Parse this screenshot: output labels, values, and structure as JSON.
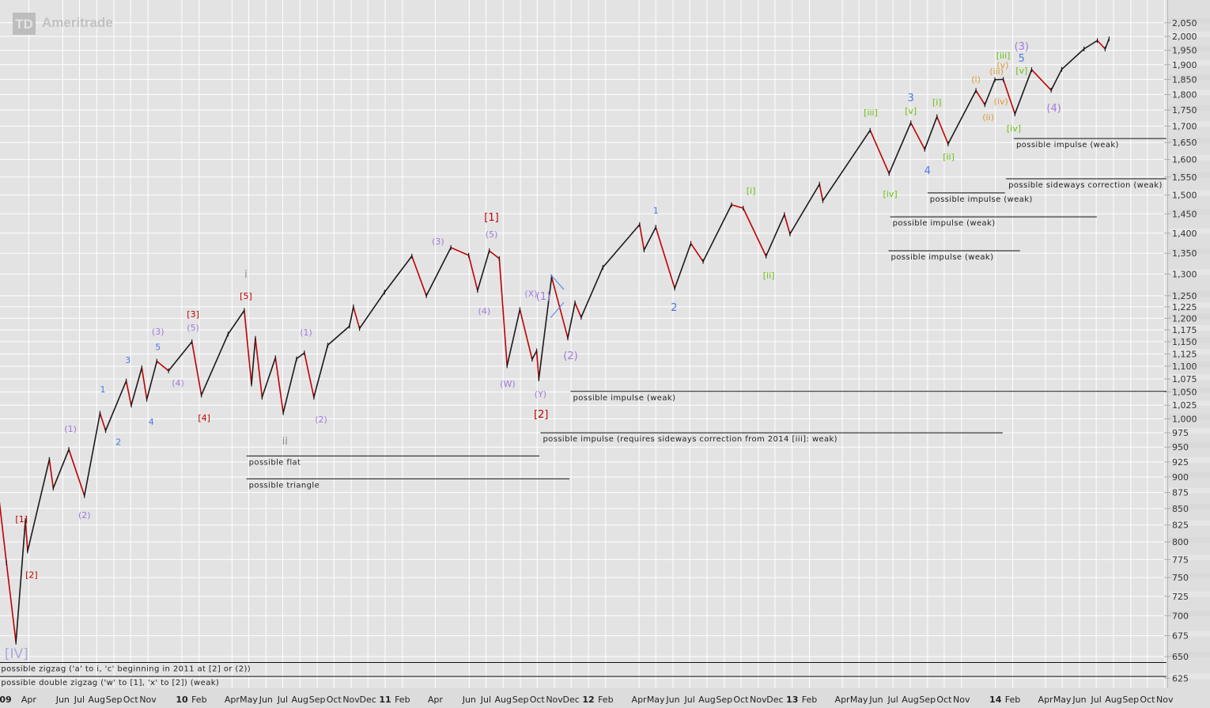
{
  "logo": {
    "text": "TD Ameritrade",
    "mark": "TD",
    "name": "Ameritrade"
  },
  "colors": {
    "background": "#e3e3e3",
    "grid": "#ffffff",
    "up_bar": "#1a1a1a",
    "down_bar": "#c00000",
    "count_line": "#111111",
    "red": "#c00000",
    "purple": "#a07ad8",
    "blue": "#4a78e8",
    "green": "#6cc010",
    "orange": "#d89a30",
    "gray": "#8a8a8a",
    "lavender": "#a8a8e0",
    "triangle": "#5b8fe8"
  },
  "chart_data": {
    "type": "line",
    "scale": "log",
    "ylim": [
      615,
      2080
    ],
    "xlim": [
      "2009-02-06",
      "2014-11-04"
    ],
    "grid": true,
    "y_ticks": [
      2050,
      2000,
      1950,
      1900,
      1850,
      1800,
      1750,
      1700,
      1650,
      1600,
      1550,
      1500,
      1450,
      1400,
      1350,
      1300,
      1250,
      1225,
      1200,
      1175,
      1150,
      1125,
      1100,
      1075,
      1050,
      1025,
      1000,
      975,
      950,
      925,
      900,
      875,
      850,
      825,
      800,
      775,
      750,
      725,
      700,
      675,
      650,
      625
    ],
    "x_ticks": [
      {
        "date": "2009-01-01",
        "label": "09",
        "bold": true
      },
      {
        "date": "2009-04-01",
        "label": "Apr"
      },
      {
        "date": "2009-06-01",
        "label": "Jun"
      },
      {
        "date": "2009-07-01",
        "label": "Jul"
      },
      {
        "date": "2009-08-01",
        "label": "Aug"
      },
      {
        "date": "2009-09-01",
        "label": "Sep"
      },
      {
        "date": "2009-10-01",
        "label": "Oct"
      },
      {
        "date": "2009-11-01",
        "label": "Nov"
      },
      {
        "date": "2010-01-01",
        "label": "10",
        "bold": true
      },
      {
        "date": "2010-02-01",
        "label": "Feb"
      },
      {
        "date": "2010-04-01",
        "label": "Apr"
      },
      {
        "date": "2010-05-01",
        "label": "May"
      },
      {
        "date": "2010-06-01",
        "label": "Jun"
      },
      {
        "date": "2010-07-01",
        "label": "Jul"
      },
      {
        "date": "2010-08-01",
        "label": "Aug"
      },
      {
        "date": "2010-09-01",
        "label": "Sep"
      },
      {
        "date": "2010-10-01",
        "label": "Oct"
      },
      {
        "date": "2010-11-01",
        "label": "Nov"
      },
      {
        "date": "2010-12-01",
        "label": "Dec"
      },
      {
        "date": "2011-01-01",
        "label": "11",
        "bold": true
      },
      {
        "date": "2011-02-01",
        "label": "Feb"
      },
      {
        "date": "2011-04-01",
        "label": "Apr"
      },
      {
        "date": "2011-06-01",
        "label": "Jun"
      },
      {
        "date": "2011-07-01",
        "label": "Jul"
      },
      {
        "date": "2011-08-01",
        "label": "Aug"
      },
      {
        "date": "2011-09-01",
        "label": "Sep"
      },
      {
        "date": "2011-10-01",
        "label": "Oct"
      },
      {
        "date": "2011-11-01",
        "label": "Nov"
      },
      {
        "date": "2011-12-01",
        "label": "Dec"
      },
      {
        "date": "2012-01-01",
        "label": "12",
        "bold": true
      },
      {
        "date": "2012-02-01",
        "label": "Feb"
      },
      {
        "date": "2012-04-01",
        "label": "Apr"
      },
      {
        "date": "2012-05-01",
        "label": "May"
      },
      {
        "date": "2012-06-01",
        "label": "Jun"
      },
      {
        "date": "2012-07-01",
        "label": "Jul"
      },
      {
        "date": "2012-08-01",
        "label": "Aug"
      },
      {
        "date": "2012-09-01",
        "label": "Sep"
      },
      {
        "date": "2012-10-01",
        "label": "Oct"
      },
      {
        "date": "2012-11-01",
        "label": "Nov"
      },
      {
        "date": "2012-12-01",
        "label": "Dec"
      },
      {
        "date": "2013-01-01",
        "label": "13",
        "bold": true
      },
      {
        "date": "2013-02-01",
        "label": "Feb"
      },
      {
        "date": "2013-04-01",
        "label": "Apr"
      },
      {
        "date": "2013-05-01",
        "label": "May"
      },
      {
        "date": "2013-06-01",
        "label": "Jun"
      },
      {
        "date": "2013-07-01",
        "label": "Jul"
      },
      {
        "date": "2013-08-01",
        "label": "Aug"
      },
      {
        "date": "2013-09-01",
        "label": "Sep"
      },
      {
        "date": "2013-10-01",
        "label": "Oct"
      },
      {
        "date": "2013-11-01",
        "label": "Nov"
      },
      {
        "date": "2014-01-01",
        "label": "14",
        "bold": true
      },
      {
        "date": "2014-02-01",
        "label": "Feb"
      },
      {
        "date": "2014-04-01",
        "label": "Apr"
      },
      {
        "date": "2014-05-01",
        "label": "May"
      },
      {
        "date": "2014-06-01",
        "label": "Jun"
      },
      {
        "date": "2014-07-01",
        "label": "Jul"
      },
      {
        "date": "2014-08-01",
        "label": "Aug"
      },
      {
        "date": "2014-09-01",
        "label": "Sep"
      },
      {
        "date": "2014-10-01",
        "label": "Oct"
      },
      {
        "date": "2014-11-01",
        "label": "Nov"
      }
    ],
    "series": [
      {
        "points": [
          [
            "2009-02-06",
            870
          ],
          [
            "2009-02-20",
            770
          ],
          [
            "2009-03-09",
            667
          ],
          [
            "2009-03-26",
            832
          ],
          [
            "2009-03-30",
            787
          ],
          [
            "2009-05-08",
            929
          ],
          [
            "2009-05-15",
            882
          ],
          [
            "2009-06-12",
            946
          ],
          [
            "2009-07-10",
            870
          ],
          [
            "2009-08-07",
            1010
          ],
          [
            "2009-08-17",
            979
          ],
          [
            "2009-09-23",
            1071
          ],
          [
            "2009-10-02",
            1025
          ],
          [
            "2009-10-21",
            1097
          ],
          [
            "2009-10-30",
            1036
          ],
          [
            "2009-11-17",
            1110
          ],
          [
            "2009-12-08",
            1091
          ],
          [
            "2010-01-19",
            1150
          ],
          [
            "2010-02-05",
            1044
          ],
          [
            "2010-03-25",
            1166
          ],
          [
            "2010-04-23",
            1217
          ],
          [
            "2010-05-06",
            1065
          ],
          [
            "2010-05-13",
            1157
          ],
          [
            "2010-05-25",
            1040
          ],
          [
            "2010-06-18",
            1117
          ],
          [
            "2010-07-02",
            1011
          ],
          [
            "2010-07-26",
            1115
          ],
          [
            "2010-08-09",
            1127
          ],
          [
            "2010-08-26",
            1040
          ],
          [
            "2010-09-20",
            1143
          ],
          [
            "2010-10-29",
            1183
          ],
          [
            "2010-11-05",
            1225
          ],
          [
            "2010-11-16",
            1178
          ],
          [
            "2010-12-31",
            1258
          ],
          [
            "2011-02-18",
            1343
          ],
          [
            "2011-03-16",
            1250
          ],
          [
            "2011-04-29",
            1364
          ],
          [
            "2011-05-31",
            1345
          ],
          [
            "2011-06-16",
            1262
          ],
          [
            "2011-07-07",
            1356
          ],
          [
            "2011-07-25",
            1337
          ],
          [
            "2011-08-08",
            1101
          ],
          [
            "2011-08-31",
            1219
          ],
          [
            "2011-09-22",
            1114
          ],
          [
            "2011-09-30",
            1131
          ],
          [
            "2011-10-04",
            1075
          ],
          [
            "2011-10-27",
            1293
          ],
          [
            "2011-11-25",
            1158
          ],
          [
            "2011-12-08",
            1234
          ],
          [
            "2011-12-19",
            1202
          ],
          [
            "2012-01-27",
            1316
          ],
          [
            "2012-04-02",
            1422
          ],
          [
            "2012-04-10",
            1358
          ],
          [
            "2012-05-01",
            1415
          ],
          [
            "2012-06-04",
            1267
          ],
          [
            "2012-07-03",
            1374
          ],
          [
            "2012-07-25",
            1330
          ],
          [
            "2012-09-14",
            1474
          ],
          [
            "2012-10-05",
            1465
          ],
          [
            "2012-11-15",
            1343
          ],
          [
            "2012-12-18",
            1448
          ],
          [
            "2012-12-28",
            1398
          ],
          [
            "2013-02-19",
            1530
          ],
          [
            "2013-02-25",
            1485
          ],
          [
            "2013-05-21",
            1687
          ],
          [
            "2013-06-24",
            1560
          ],
          [
            "2013-08-02",
            1710
          ],
          [
            "2013-08-27",
            1630
          ],
          [
            "2013-09-18",
            1729
          ],
          [
            "2013-10-08",
            1646
          ],
          [
            "2013-11-27",
            1813
          ],
          [
            "2013-12-13",
            1767
          ],
          [
            "2013-12-31",
            1849
          ],
          [
            "2014-01-15",
            1850
          ],
          [
            "2014-02-05",
            1738
          ],
          [
            "2014-03-07",
            1883
          ],
          [
            "2014-04-11",
            1814
          ],
          [
            "2014-04-30",
            1884
          ],
          [
            "2014-06-09",
            1955
          ],
          [
            "2014-07-03",
            1985
          ],
          [
            "2014-07-17",
            1955
          ],
          [
            "2014-07-24",
            1991
          ]
        ]
      }
    ],
    "annotations": [
      {
        "text": "[IV]",
        "date": "2009-03-10",
        "price": 652,
        "color": "lavender",
        "size": "xl"
      },
      {
        "text": "[1]",
        "date": "2009-03-19",
        "price": 834,
        "color": "red"
      },
      {
        "text": "[2]",
        "date": "2009-04-06",
        "price": 754,
        "color": "red"
      },
      {
        "text": "(1)",
        "date": "2009-06-15",
        "price": 982,
        "color": "purple"
      },
      {
        "text": "(2)",
        "date": "2009-07-10",
        "price": 840,
        "color": "purple"
      },
      {
        "text": "1",
        "date": "2009-08-12",
        "price": 1055,
        "color": "blue"
      },
      {
        "text": "2",
        "date": "2009-09-09",
        "price": 959,
        "color": "blue"
      },
      {
        "text": "3",
        "date": "2009-09-26",
        "price": 1113,
        "color": "blue"
      },
      {
        "text": "4",
        "date": "2009-11-07",
        "price": 995,
        "color": "blue"
      },
      {
        "text": "5",
        "date": "2009-11-19",
        "price": 1139,
        "color": "blue"
      },
      {
        "text": "(3)",
        "date": "2009-11-19",
        "price": 1172,
        "color": "purple"
      },
      {
        "text": "(4)",
        "date": "2009-12-25",
        "price": 1067,
        "color": "purple"
      },
      {
        "text": "(5)",
        "date": "2010-01-21",
        "price": 1180,
        "color": "purple"
      },
      {
        "text": "[3]",
        "date": "2010-01-21",
        "price": 1209,
        "color": "red"
      },
      {
        "text": "[4]",
        "date": "2010-02-10",
        "price": 1002,
        "color": "red"
      },
      {
        "text": "[5]",
        "date": "2010-04-26",
        "price": 1250,
        "color": "red"
      },
      {
        "text": "i",
        "date": "2010-04-26",
        "price": 1299,
        "color": "gray",
        "size": "l"
      },
      {
        "text": "(1)",
        "date": "2010-08-12",
        "price": 1170,
        "color": "purple"
      },
      {
        "text": "ii",
        "date": "2010-07-05",
        "price": 960,
        "color": "gray",
        "size": "l"
      },
      {
        "text": "(2)",
        "date": "2010-09-08",
        "price": 999,
        "color": "purple"
      },
      {
        "text": "(3)",
        "date": "2011-04-06",
        "price": 1380,
        "color": "purple"
      },
      {
        "text": "[1]",
        "date": "2011-07-11",
        "price": 1440,
        "color": "red",
        "size": "l"
      },
      {
        "text": "(5)",
        "date": "2011-07-11",
        "price": 1398,
        "color": "purple"
      },
      {
        "text": "(4)",
        "date": "2011-06-28",
        "price": 1216,
        "color": "purple"
      },
      {
        "text": "(W)",
        "date": "2011-08-09",
        "price": 1066,
        "color": "purple"
      },
      {
        "text": "(X)",
        "date": "2011-09-20",
        "price": 1255,
        "color": "purple"
      },
      {
        "text": "(1)",
        "date": "2011-10-12",
        "price": 1248,
        "color": "purple",
        "size": "l"
      },
      {
        "text": "(Y)",
        "date": "2011-10-07",
        "price": 1046,
        "color": "purple"
      },
      {
        "text": "[2]",
        "date": "2011-10-08",
        "price": 1008,
        "color": "red",
        "size": "l"
      },
      {
        "text": "(2)",
        "date": "2011-11-30",
        "price": 1121,
        "color": "purple",
        "size": "l"
      },
      {
        "text": "1",
        "date": "2012-05-01",
        "price": 1459,
        "color": "blue"
      },
      {
        "text": "2",
        "date": "2012-06-03",
        "price": 1223,
        "color": "blue",
        "size": "l"
      },
      {
        "text": "[i]",
        "date": "2012-10-19",
        "price": 1512,
        "color": "green"
      },
      {
        "text": "[ii]",
        "date": "2012-11-20",
        "price": 1297,
        "color": "green"
      },
      {
        "text": "[iii]",
        "date": "2013-05-22",
        "price": 1743,
        "color": "green"
      },
      {
        "text": "[iv]",
        "date": "2013-06-26",
        "price": 1504,
        "color": "green"
      },
      {
        "text": "3",
        "date": "2013-08-02",
        "price": 1788,
        "color": "blue",
        "size": "l"
      },
      {
        "text": "[v]",
        "date": "2013-08-02",
        "price": 1748,
        "color": "green"
      },
      {
        "text": "4",
        "date": "2013-09-01",
        "price": 1567,
        "color": "blue",
        "size": "l"
      },
      {
        "text": "[i]",
        "date": "2013-09-18",
        "price": 1776,
        "color": "green"
      },
      {
        "text": "[ii]",
        "date": "2013-10-09",
        "price": 1608,
        "color": "green"
      },
      {
        "text": "(i)",
        "date": "2013-11-27",
        "price": 1851,
        "color": "orange"
      },
      {
        "text": "(ii)",
        "date": "2013-12-19",
        "price": 1728,
        "color": "orange"
      },
      {
        "text": "(iii)",
        "date": "2014-01-03",
        "price": 1878,
        "color": "orange"
      },
      {
        "text": "(iv)",
        "date": "2014-01-11",
        "price": 1778,
        "color": "orange"
      },
      {
        "text": "(v)",
        "date": "2014-01-14",
        "price": 1899,
        "color": "orange"
      },
      {
        "text": "[iii]",
        "date": "2014-01-15",
        "price": 1932,
        "color": "green"
      },
      {
        "text": "(3)",
        "date": "2014-02-17",
        "price": 1963,
        "color": "purple",
        "size": "l"
      },
      {
        "text": "5",
        "date": "2014-02-17",
        "price": 1921,
        "color": "blue",
        "size": "l"
      },
      {
        "text": "[v]",
        "date": "2014-02-17",
        "price": 1880,
        "color": "green"
      },
      {
        "text": "[iv]",
        "date": "2014-02-03",
        "price": 1694,
        "color": "green"
      },
      {
        "text": "(4)",
        "date": "2014-04-16",
        "price": 1755,
        "color": "purple",
        "size": "l"
      }
    ],
    "triangle_lines": [
      [
        [
          "2011-10-25",
          1299
        ],
        [
          "2011-11-18",
          1264
        ]
      ],
      [
        [
          "2011-10-25",
          1201
        ],
        [
          "2011-11-18",
          1235
        ]
      ]
    ],
    "count_lines": [
      {
        "text": "possible zigzag ('a' to i, 'c' beginning in 2011 at [2] or (2))",
        "from": "2009-02-06",
        "to": "2014-11-04",
        "price": 643
      },
      {
        "text": "possible double zigzag ('w' to [1], 'x' to [2]) (weak)",
        "from": "2009-02-06",
        "to": "2014-11-04",
        "price": 627
      },
      {
        "text": "possible flat",
        "from": "2010-04-27",
        "to": "2011-10-05",
        "price": 935
      },
      {
        "text": "possible triangle",
        "from": "2010-04-27",
        "to": "2011-11-28",
        "price": 897
      },
      {
        "text": "possible impulse (weak)",
        "from": "2011-11-30",
        "to": "2014-11-04",
        "price": 1051
      },
      {
        "text": "possible impulse (requires sideways correction from 2014 [iii]: weak)",
        "from": "2011-10-07",
        "to": "2014-01-14",
        "price": 975
      },
      {
        "text": "possible impulse (weak)",
        "from": "2013-06-23",
        "to": "2014-02-14",
        "price": 1356
      },
      {
        "text": "possible impulse (weak)",
        "from": "2013-06-26",
        "to": "2014-07-02",
        "price": 1442
      },
      {
        "text": "possible impulse (weak)",
        "from": "2013-09-01",
        "to": "2014-01-18",
        "price": 1506
      },
      {
        "text": "possible sideways correction (weak)",
        "from": "2014-01-20",
        "to": "2014-11-04",
        "price": 1545
      },
      {
        "text": "possible impulse (weak)",
        "from": "2014-02-03",
        "to": "2014-11-04",
        "price": 1662
      }
    ]
  }
}
